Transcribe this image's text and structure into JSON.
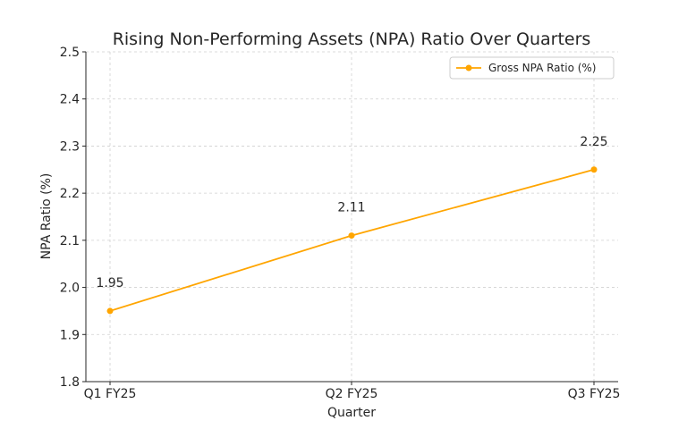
{
  "chart_data": {
    "type": "line",
    "title": "Rising Non-Performing Assets (NPA) Ratio Over Quarters",
    "xlabel": "Quarter",
    "ylabel": "NPA Ratio (%)",
    "categories": [
      "Q1 FY25",
      "Q2 FY25",
      "Q3 FY25"
    ],
    "series": [
      {
        "name": "Gross NPA Ratio (%)",
        "values": [
          1.95,
          2.11,
          2.25
        ],
        "color": "#FFA500"
      }
    ],
    "ylim": [
      1.8,
      2.5
    ],
    "yticks": [
      1.8,
      1.9,
      2.0,
      2.1,
      2.2,
      2.3,
      2.4,
      2.5
    ],
    "ytick_labels": [
      "1.8",
      "1.9",
      "2.0",
      "2.1",
      "2.2",
      "2.3",
      "2.4",
      "2.5"
    ],
    "data_labels": [
      "1.95",
      "2.11",
      "2.25"
    ],
    "grid": true,
    "legend_position": "top-right"
  }
}
